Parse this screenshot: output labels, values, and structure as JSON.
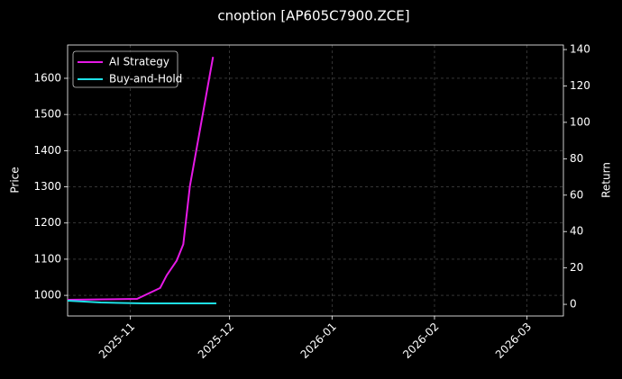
{
  "chart_data": {
    "type": "line",
    "title": "cnoption [AP605C7900.ZCE]",
    "y_label": "Price",
    "y2_label": "Return",
    "xlim": [
      -19,
      131
    ],
    "xticks": [
      {
        "value": 0,
        "label": "2025-11"
      },
      {
        "value": 30,
        "label": "2025-12"
      },
      {
        "value": 61,
        "label": "2026-01"
      },
      {
        "value": 92,
        "label": "2026-02"
      },
      {
        "value": 120,
        "label": "2026-03"
      }
    ],
    "ylim": [
      943,
      1692
    ],
    "yticks": [
      1000,
      1100,
      1200,
      1300,
      1400,
      1500,
      1600
    ],
    "y2lim": [
      -6.4,
      142.5
    ],
    "y2ticks": [
      0,
      20,
      40,
      60,
      80,
      100,
      120,
      140
    ],
    "grid": true,
    "legend": "upper left",
    "series": [
      {
        "name": "AI Strategy",
        "color": "#e619e6",
        "axis": "y2",
        "x": [
          -19,
          2,
          9,
          11,
          14,
          16,
          18,
          25
        ],
        "values": [
          2.5,
          3,
          9,
          16,
          24,
          33,
          65,
          136
        ]
      },
      {
        "name": "Buy-and-Hold",
        "color": "#1ee0e8",
        "axis": "y2",
        "x": [
          -19,
          -9,
          4,
          26
        ],
        "values": [
          2,
          1,
          0.5,
          0.5
        ]
      }
    ]
  }
}
